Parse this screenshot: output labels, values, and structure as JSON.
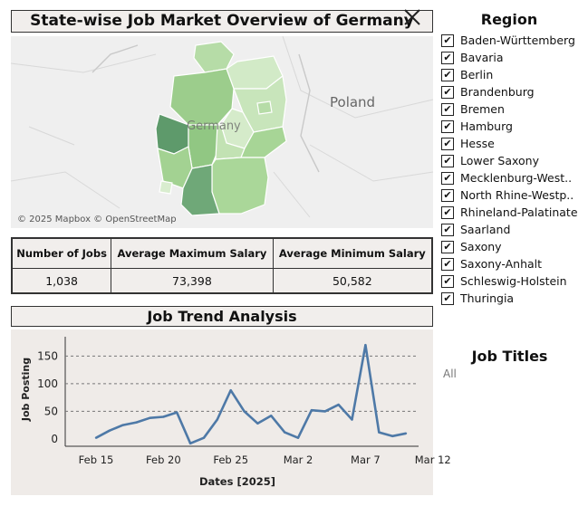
{
  "header": {
    "title": "State-wise Job Market Overview of Germany"
  },
  "map": {
    "credit": "© 2025 Mapbox © OpenStreetMap",
    "label_poland": "Poland",
    "label_germany": "Germany"
  },
  "kpis": {
    "headers": [
      "Number of Jobs",
      "Average Maximum Salary",
      "Average Minimum Salary"
    ],
    "values": [
      "1,038",
      "73,398",
      "50,582"
    ]
  },
  "trend": {
    "title": "Job Trend Analysis"
  },
  "chart_data": {
    "type": "line",
    "title": "Job Trend Analysis",
    "xlabel": "Dates [2025]",
    "ylabel": "Job Posting",
    "x": [
      "Feb 15",
      "Feb 16",
      "Feb 17",
      "Feb 18",
      "Feb 19",
      "Feb 20",
      "Feb 21",
      "Feb 22",
      "Feb 23",
      "Feb 24",
      "Feb 25",
      "Feb 26",
      "Feb 27",
      "Feb 28",
      "Mar 1",
      "Mar 2",
      "Mar 3",
      "Mar 4",
      "Mar 5",
      "Mar 6",
      "Mar 7",
      "Mar 8",
      "Mar 9",
      "Mar 10"
    ],
    "values": [
      2,
      15,
      25,
      30,
      38,
      40,
      48,
      -8,
      2,
      35,
      88,
      50,
      28,
      42,
      12,
      2,
      52,
      50,
      62,
      35,
      170,
      12,
      5,
      10
    ],
    "x_ticks": [
      "Feb 15",
      "Feb 20",
      "Feb 25",
      "Mar 2",
      "Mar 7",
      "Mar 12"
    ],
    "y_ticks": [
      0,
      50,
      100,
      150
    ],
    "ylim": [
      -10,
      185
    ],
    "grid": true,
    "line_color": "#4e79a7"
  },
  "legend": {
    "title": "Region",
    "items": [
      "Baden-Württemberg",
      "Bavaria",
      "Berlin",
      "Brandenburg",
      "Bremen",
      "Hamburg",
      "Hesse",
      "Lower Saxony",
      "Mecklenburg-West..",
      "North Rhine-Westp..",
      "Rhineland-Palatinate",
      "Saarland",
      "Saxony",
      "Saxony-Anhalt",
      "Schleswig-Holstein",
      "Thuringia"
    ],
    "check": "✔"
  },
  "job_titles": {
    "title": "Job Titles",
    "value": "All"
  }
}
